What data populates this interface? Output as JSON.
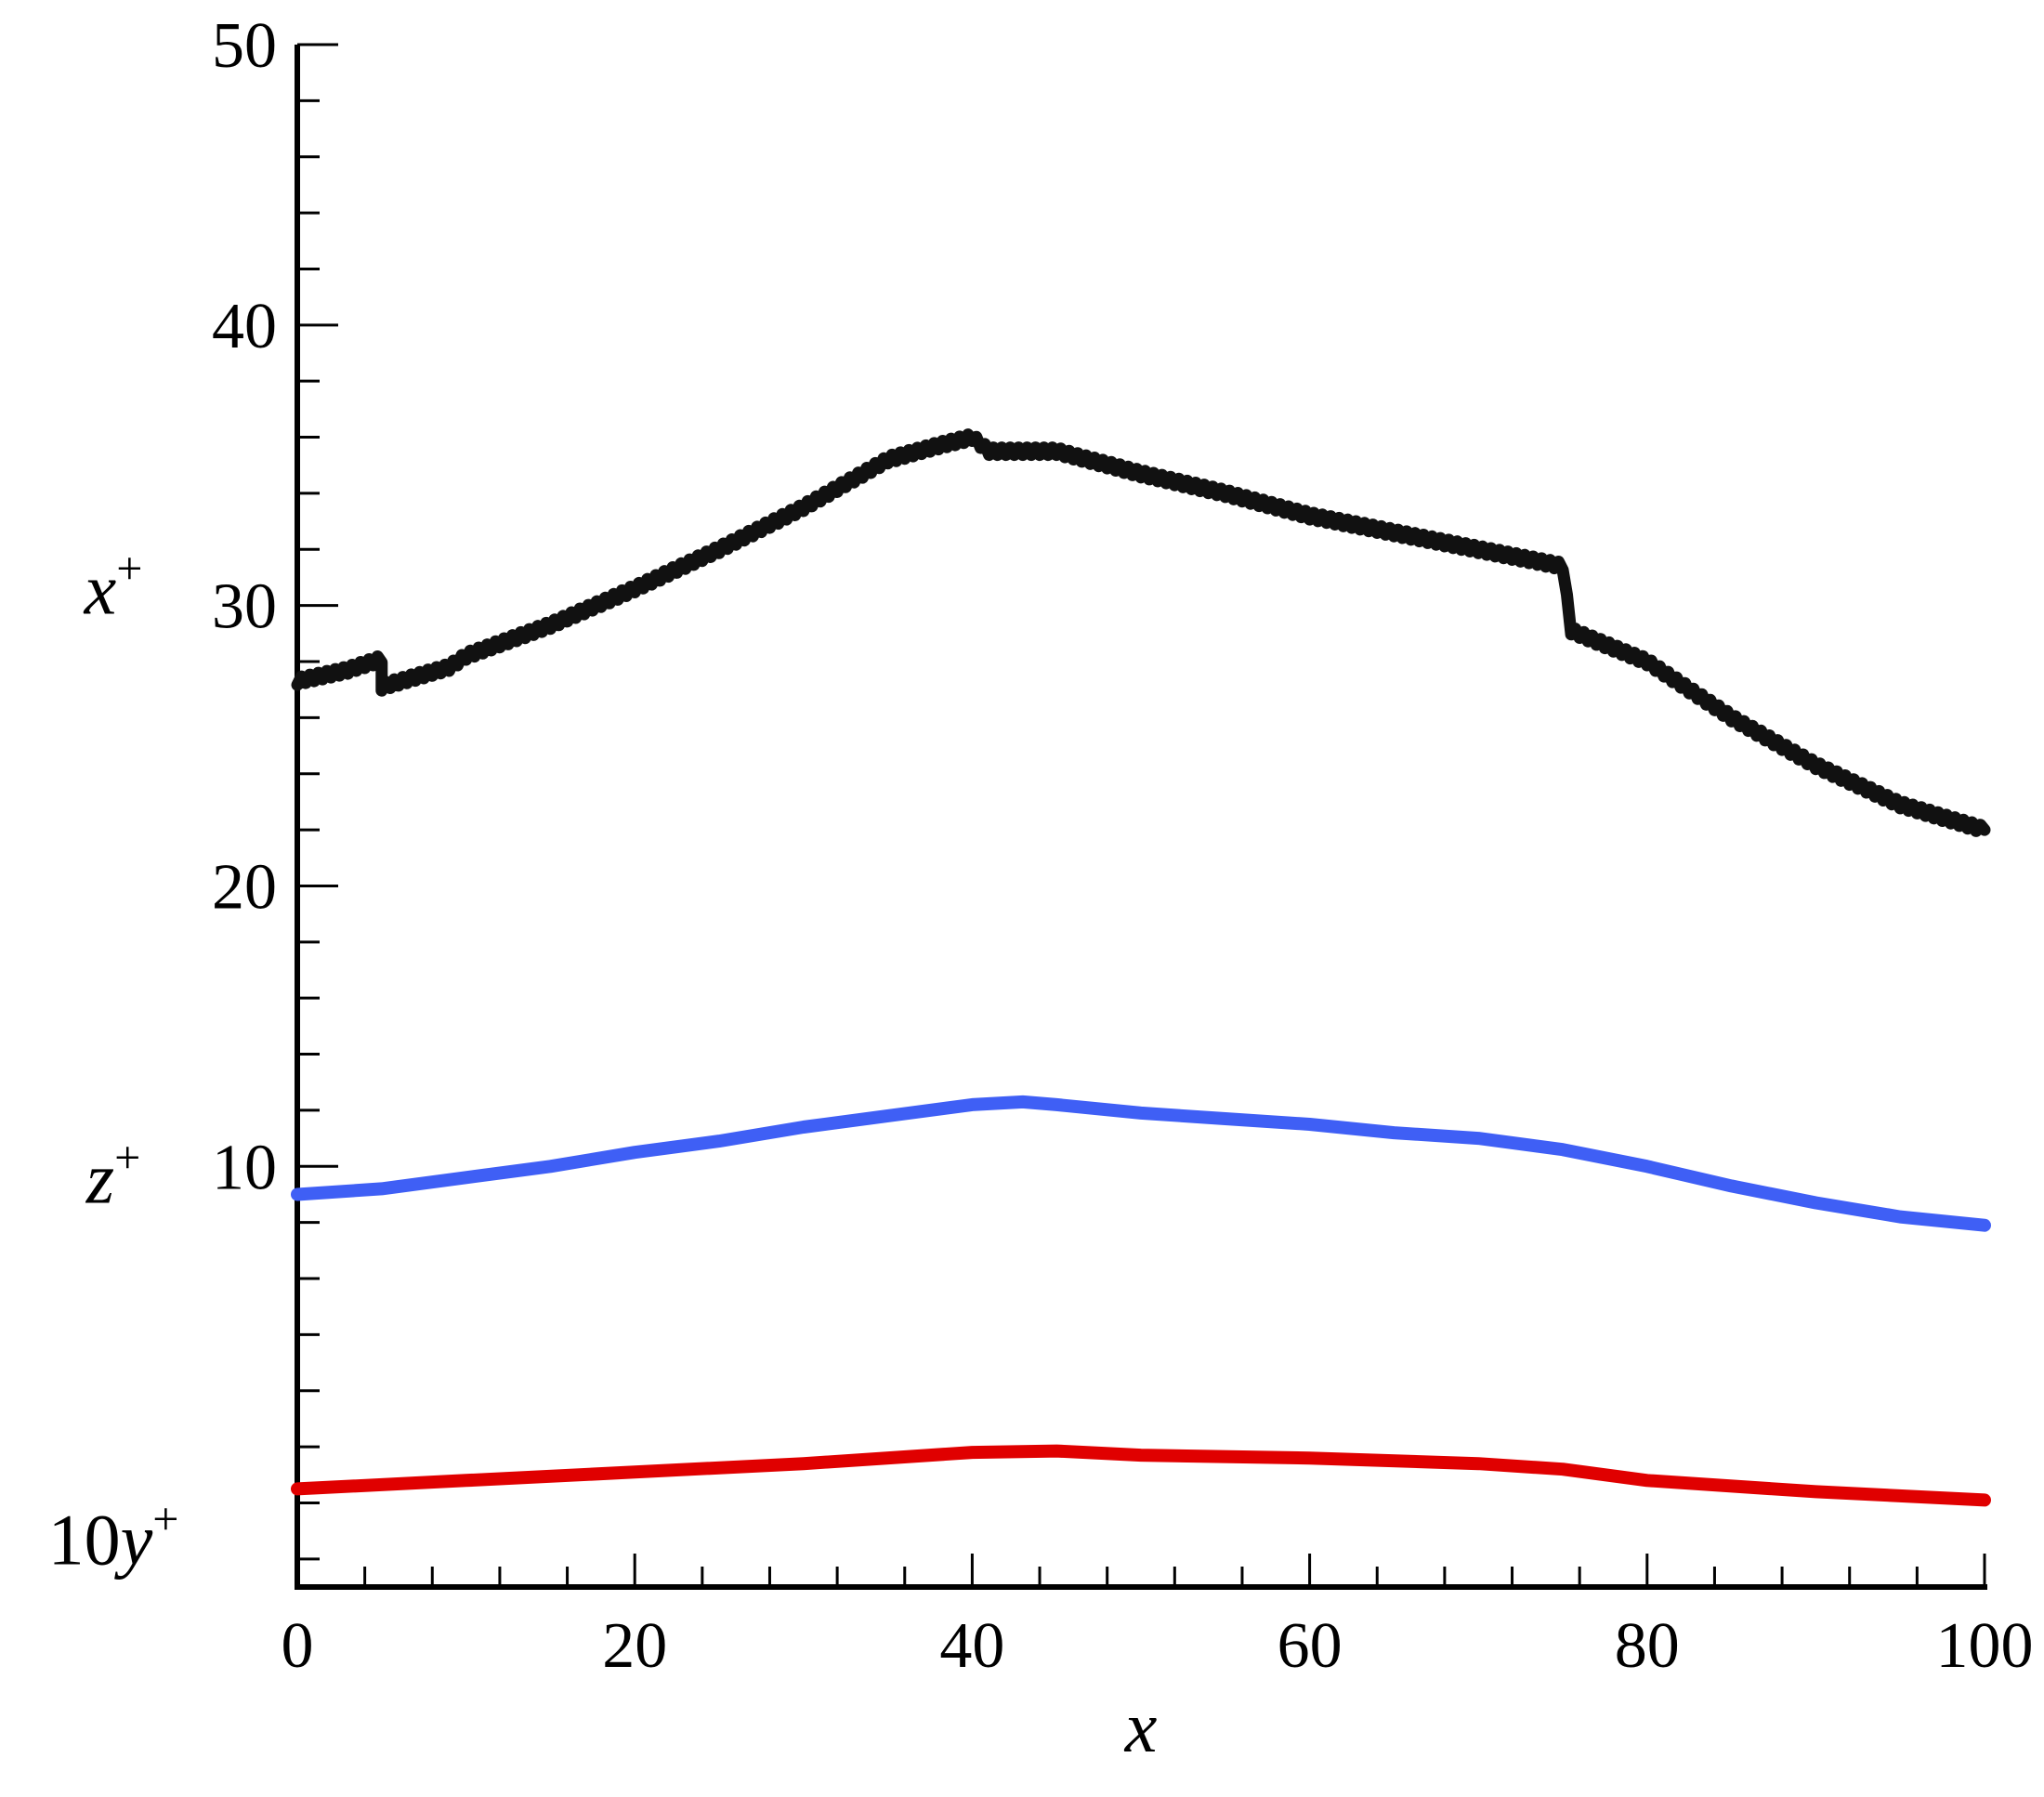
{
  "chart_data": {
    "type": "line",
    "xlabel": "x",
    "ylabel": "",
    "xlim": [
      0,
      100
    ],
    "ylim": [
      -5,
      50
    ],
    "x_ticks": [
      0,
      20,
      40,
      60,
      80,
      100
    ],
    "x_tick_labels": [
      "0",
      "20",
      "40",
      "60",
      "80",
      "100"
    ],
    "x_minor_step": 4,
    "y_ticks": [
      10,
      20,
      30,
      40,
      50
    ],
    "y_tick_labels": [
      "10",
      "20",
      "30",
      "40",
      "50"
    ],
    "y_minor_step": 2,
    "grid": false,
    "series": [
      {
        "label_var": "x",
        "label_prefix": "",
        "label_sup": "+",
        "label_y": 30.5,
        "color": "#111111",
        "noisy": true,
        "x": [
          0,
          3,
          5,
          5,
          9,
          10,
          15,
          20,
          25,
          30,
          35,
          38,
          40,
          41,
          45,
          50,
          55,
          60,
          65,
          70,
          75,
          75.5,
          80,
          85,
          90,
          95,
          100
        ],
        "y": [
          27.3,
          27.7,
          28.1,
          27.1,
          27.8,
          28.2,
          29.3,
          30.6,
          32.0,
          33.5,
          35.2,
          35.7,
          36.0,
          35.5,
          35.5,
          34.7,
          34.0,
          33.2,
          32.6,
          32.0,
          31.4,
          29.1,
          28.0,
          26.0,
          24.3,
          22.9,
          22.0
        ]
      },
      {
        "label_var": "z",
        "label_prefix": "",
        "label_sup": "+",
        "label_y": 9.5,
        "color": "#3f5ff5",
        "noisy": false,
        "x": [
          0,
          5,
          10,
          15,
          20,
          25,
          30,
          35,
          40,
          43,
          45,
          50,
          55,
          60,
          65,
          70,
          75,
          80,
          85,
          90,
          95,
          100
        ],
        "y": [
          9.0,
          9.2,
          9.6,
          10.0,
          10.5,
          10.9,
          11.4,
          11.8,
          12.2,
          12.3,
          12.2,
          11.9,
          11.7,
          11.5,
          11.2,
          11.0,
          10.6,
          10.0,
          9.3,
          8.7,
          8.2,
          7.9
        ]
      },
      {
        "label_var": "y",
        "label_prefix": "10",
        "label_sup": "+",
        "label_y": -3.4,
        "color": "#e00000",
        "noisy": false,
        "x": [
          0,
          10,
          20,
          30,
          40,
          45,
          50,
          60,
          70,
          75,
          80,
          90,
          100
        ],
        "y": [
          -1.5,
          -1.2,
          -0.9,
          -0.6,
          -0.2,
          -0.15,
          -0.3,
          -0.4,
          -0.6,
          -0.8,
          -1.2,
          -1.6,
          -1.9
        ]
      }
    ]
  }
}
